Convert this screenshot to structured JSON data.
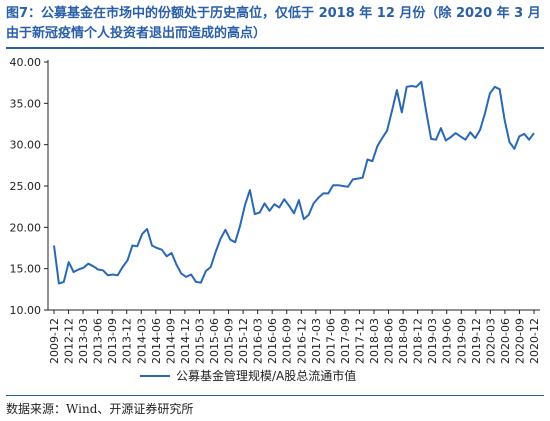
{
  "header": {
    "title": "图7：公募基金在市场中的份额处于历史高位，仅低于 2018 年 12 月份（除 2020 年 3 月由于新冠疫情个人投资者退出而造成的高点）"
  },
  "footer": {
    "source": "数据来源：Wind、开源证券研究所"
  },
  "chart_data": {
    "type": "line",
    "title": "",
    "xlabel": "",
    "ylabel": "",
    "ylim": [
      10,
      40
    ],
    "yticks": [
      "10.00",
      "15.00",
      "20.00",
      "25.00",
      "30.00",
      "35.00",
      "40.00"
    ],
    "xticks": [
      "2009-12",
      "2012-12",
      "2013-03",
      "2013-06",
      "2013-09",
      "2013-12",
      "2014-03",
      "2014-06",
      "2014-09",
      "2014-12",
      "2015-03",
      "2015-06",
      "2015-09",
      "2015-12",
      "2016-03",
      "2016-06",
      "2016-09",
      "2016-12",
      "2017-03",
      "2017-06",
      "2017-09",
      "2017-12",
      "2018-03",
      "2018-06",
      "2018-09",
      "2018-12",
      "2019-03",
      "2019-06",
      "2019-09",
      "2019-12",
      "2020-03",
      "2020-06",
      "2020-09",
      "2020-12"
    ],
    "grid": false,
    "legend": "bottom-center",
    "color": "#2a68b6",
    "series": [
      {
        "name": "公募基金管理规模/A股总流通市值",
        "values": [
          17.8,
          13.2,
          13.4,
          15.8,
          14.6,
          14.9,
          15.1,
          15.6,
          15.3,
          14.9,
          14.8,
          14.2,
          14.3,
          14.2,
          15.2,
          16.0,
          17.8,
          17.7,
          19.2,
          19.8,
          17.8,
          17.5,
          17.3,
          16.5,
          16.9,
          15.5,
          14.4,
          14.0,
          14.3,
          13.4,
          13.3,
          14.7,
          15.2,
          17.0,
          18.6,
          19.7,
          18.5,
          18.2,
          20.2,
          22.7,
          24.5,
          21.6,
          21.8,
          22.9,
          22.0,
          22.8,
          22.4,
          23.4,
          22.6,
          21.7,
          23.3,
          21.0,
          21.5,
          22.9,
          23.6,
          24.1,
          24.1,
          25.1,
          25.1,
          25.0,
          24.9,
          25.8,
          25.9,
          26.0,
          28.2,
          28.0,
          29.8,
          30.8,
          31.7,
          34.1,
          36.6,
          33.9,
          37.0,
          37.1,
          37.0,
          37.6,
          34.0,
          30.7,
          30.6,
          32.0,
          30.5,
          30.9,
          31.4,
          31.0,
          30.6,
          31.5,
          30.8,
          31.8,
          33.8,
          36.2,
          37.0,
          36.7,
          33.0,
          30.3,
          29.5,
          31.0,
          31.3,
          30.6,
          31.4
        ]
      }
    ]
  }
}
